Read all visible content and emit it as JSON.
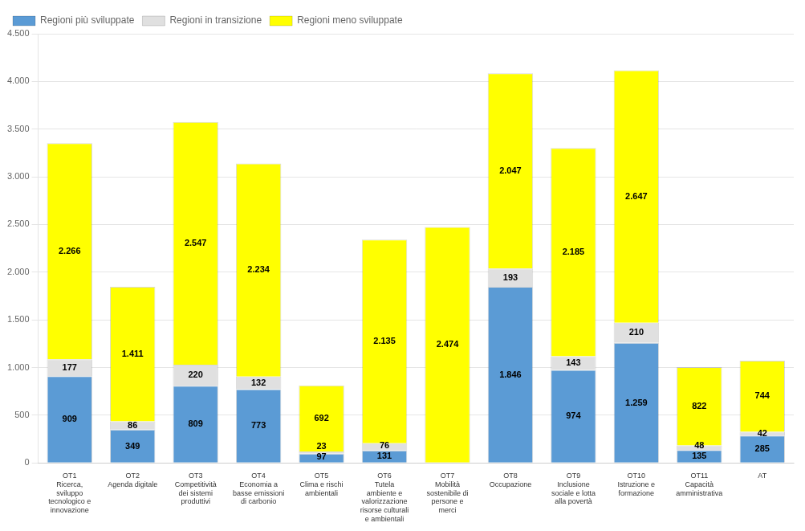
{
  "chart_data": {
    "type": "bar",
    "stacked": true,
    "categories": [
      "OT1\nRicerca,\nsviluppo\ntecnologico e\ninnovazione",
      "OT2\nAgenda digitale",
      "OT3\nCompetitività\ndei sistemi\nproduttivi",
      "OT4\nEconomia a\nbasse emissioni\ndi carbonio",
      "OT5\nClima e rischi\nambientali",
      "OT6\nTutela\nambiente e\nvalorizzazione\nrisorse culturali\ne ambientali",
      "OT7\nMobilità\nsostenibile di\npersone e\nmerci",
      "OT8\nOccupazione",
      "OT9\nInclusione\nsociale e lotta\nalla povertà",
      "OT10\nIstruzione e\nformazione",
      "OT11\nCapacità\namministrativa",
      "AT"
    ],
    "series": [
      {
        "name": "Regioni più sviluppate",
        "color": "#5B9BD5",
        "values": [
          909,
          349,
          809,
          773,
          97,
          131,
          0,
          1846,
          974,
          1259,
          135,
          285
        ],
        "value_labels": [
          "909",
          "349",
          "809",
          "773",
          "97",
          "131",
          null,
          "1.846",
          "974",
          "1.259",
          "135",
          "285"
        ]
      },
      {
        "name": "Regioni in transizione",
        "color": "#E0E0E0",
        "values": [
          177,
          86,
          220,
          132,
          23,
          76,
          0,
          193,
          143,
          210,
          48,
          42
        ],
        "value_labels": [
          "177",
          "86",
          "220",
          "132",
          "23",
          "76",
          null,
          "193",
          "143",
          "210",
          "48",
          "42"
        ]
      },
      {
        "name": "Regioni meno sviluppate",
        "color": "#FFFF00",
        "values": [
          2266,
          1411,
          2547,
          2234,
          692,
          2135,
          2474,
          2047,
          2185,
          2647,
          822,
          744
        ],
        "value_labels": [
          "2.266",
          "1.411",
          "2.547",
          "2.234",
          "692",
          "2.135",
          "2.474",
          "2.047",
          "2.185",
          "2.647",
          "822",
          "744"
        ]
      }
    ],
    "ylim": [
      0,
      4500
    ],
    "yticks": [
      0,
      500,
      {
        "value": 1000,
        "label": "1.000"
      },
      {
        "value": 1500,
        "label": "1.500"
      },
      {
        "value": 2000,
        "label": "2.000"
      },
      {
        "value": 2500,
        "label": "2.500"
      },
      {
        "value": 3000,
        "label": "3.000"
      },
      {
        "value": 3500,
        "label": "3.500"
      },
      {
        "value": 4000,
        "label": "4.000"
      },
      {
        "value": 4500,
        "label": "4.500"
      }
    ],
    "grid": true,
    "legend": "upper left",
    "data_labels": true
  }
}
